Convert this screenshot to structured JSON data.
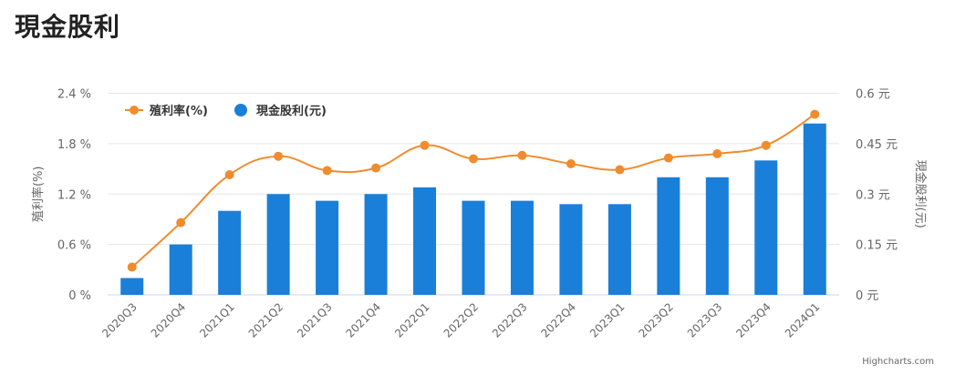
{
  "title": "現金股利",
  "credits": "Highcharts.com",
  "chart_data": {
    "type": "bar+line",
    "title": "現金股利",
    "categories": [
      "2020Q3",
      "2020Q4",
      "2021Q1",
      "2021Q2",
      "2021Q3",
      "2021Q4",
      "2022Q1",
      "2022Q2",
      "2022Q3",
      "2022Q4",
      "2023Q1",
      "2023Q2",
      "2023Q3",
      "2023Q4",
      "2024Q1"
    ],
    "series": [
      {
        "name": "殖利率(%)",
        "type": "line",
        "axis": "left",
        "color": "#F08C2E",
        "values": [
          0.33,
          0.86,
          1.43,
          1.65,
          1.48,
          1.51,
          1.78,
          1.62,
          1.66,
          1.56,
          1.49,
          1.63,
          1.68,
          1.78,
          2.15
        ]
      },
      {
        "name": "現金股利(元)",
        "type": "bar",
        "axis": "right",
        "color": "#1A7FD9",
        "values": [
          0.05,
          0.15,
          0.25,
          0.3,
          0.28,
          0.3,
          0.32,
          0.28,
          0.28,
          0.27,
          0.27,
          0.35,
          0.35,
          0.4,
          0.51
        ]
      }
    ],
    "left_axis": {
      "label": "殖利率(%)",
      "ylim": [
        0,
        2.4
      ],
      "ticks": [
        "0 %",
        "0.6 %",
        "1.2 %",
        "1.8 %",
        "2.4 %"
      ]
    },
    "right_axis": {
      "label": "現金股利(元)",
      "ylim": [
        0,
        0.6
      ],
      "ticks": [
        "0 元",
        "0.15 元",
        "0.3 元",
        "0.45 元",
        "0.6 元"
      ]
    },
    "legend": "top-left",
    "grid": true
  }
}
